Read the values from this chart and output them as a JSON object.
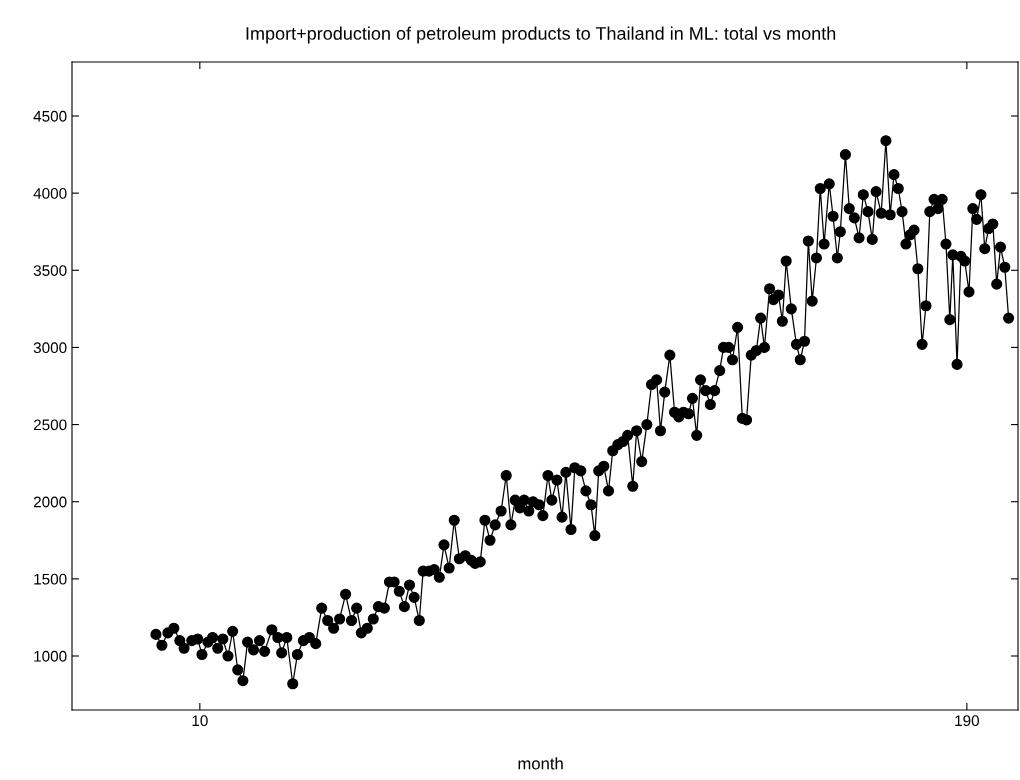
{
  "chart_data": {
    "type": "line",
    "title": "Import+production of petroleum products to Thailand in ML: total vs month",
    "xlabel": "month",
    "x": [
      -0.3,
      1.1,
      2.5,
      3.9,
      5.3,
      6.3,
      8.1,
      9.5,
      10.5,
      11.9,
      13.0,
      14.2,
      15.4,
      16.6,
      17.7,
      18.9,
      20.1,
      21.2,
      22.6,
      24.0,
      25.2,
      26.9,
      28.3,
      29.2,
      30.4,
      31.8,
      32.9,
      34.3,
      35.7,
      37.2,
      38.6,
      40.0,
      41.4,
      42.8,
      44.2,
      45.6,
      46.8,
      47.9,
      49.3,
      50.7,
      51.9,
      53.3,
      54.5,
      55.6,
      56.8,
      58.0,
      59.2,
      60.3,
      61.5,
      62.4,
      63.8,
      65.0,
      66.2,
      67.3,
      68.5,
      69.7,
      70.9,
      72.3,
      73.7,
      74.6,
      75.8,
      76.9,
      78.1,
      79.3,
      80.7,
      81.9,
      83.0,
      84.0,
      85.1,
      86.1,
      87.2,
      88.2,
      89.6,
      90.5,
      91.7,
      92.6,
      93.8,
      95.0,
      95.9,
      97.1,
      98.0,
      99.4,
      100.6,
      101.8,
      102.7,
      103.6,
      104.8,
      105.9,
      106.9,
      108.1,
      109.3,
      110.4,
      111.6,
      112.5,
      113.7,
      114.9,
      116.0,
      117.2,
      118.1,
      119.1,
      120.3,
      121.4,
      122.4,
      123.5,
      124.7,
      125.6,
      126.6,
      127.5,
      128.7,
      129.8,
      130.8,
      132.0,
      132.9,
      134.1,
      135.0,
      136.2,
      137.3,
      138.3,
      139.4,
      140.6,
      141.6,
      142.5,
      143.7,
      144.6,
      145.8,
      146.7,
      147.6,
      148.8,
      150.0,
      150.9,
      151.9,
      152.8,
      153.7,
      154.7,
      155.6,
      156.5,
      157.7,
      158.6,
      159.6,
      160.3,
      161.5,
      162.4,
      163.6,
      164.7,
      165.7,
      166.8,
      167.8,
      168.7,
      169.9,
      171.0,
      172.0,
      172.9,
      173.9,
      174.8,
      175.7,
      176.7,
      177.6,
      178.5,
      179.5,
      180.4,
      181.3,
      182.3,
      183.2,
      184.2,
      185.1,
      186.0,
      186.7,
      187.7,
      188.6,
      189.5,
      190.5,
      191.4,
      192.3,
      193.3,
      194.2,
      195.1,
      196.1,
      197.0,
      197.9,
      198.9,
      199.8
    ],
    "series": [
      {
        "color": "#000000",
        "values": [
          1140,
          1070,
          1150,
          1180,
          1100,
          1050,
          1100,
          1110,
          1010,
          1090,
          1120,
          1050,
          1110,
          1000,
          1160,
          910,
          840,
          1090,
          1040,
          1100,
          1030,
          1170,
          1120,
          1020,
          1120,
          820,
          1010,
          1100,
          1120,
          1080,
          1310,
          1230,
          1180,
          1240,
          1400,
          1230,
          1310,
          1150,
          1180,
          1240,
          1320,
          1310,
          1480,
          1480,
          1420,
          1320,
          1460,
          1380,
          1230,
          1550,
          1550,
          1560,
          1510,
          1720,
          1570,
          1880,
          1630,
          1650,
          1620,
          1600,
          1610,
          1880,
          1750,
          1850,
          1940,
          2170,
          1850,
          2010,
          1960,
          2010,
          1940,
          2000,
          1980,
          1910,
          2170,
          2010,
          2140,
          1900,
          2190,
          1820,
          2220,
          2200,
          2070,
          1980,
          1780,
          2200,
          2230,
          2070,
          2330,
          2370,
          2390,
          2430,
          2100,
          2460,
          2260,
          2500,
          2760,
          2790,
          2460,
          2710,
          2950,
          2580,
          2550,
          2580,
          2570,
          2670,
          2430,
          2790,
          2720,
          2630,
          2720,
          2850,
          3000,
          3000,
          2920,
          3130,
          2540,
          2530,
          2950,
          2980,
          3190,
          3000,
          3380,
          3310,
          3340,
          3170,
          3560,
          3250,
          3020,
          2920,
          3040,
          3690,
          3300,
          3580,
          4030,
          3670,
          4060,
          3850,
          3580,
          3750,
          4250,
          3900,
          3840,
          3710,
          3990,
          3880,
          3700,
          4010,
          3870,
          4340,
          3860,
          4120,
          4030,
          3880,
          3670,
          3730,
          3760,
          3510,
          3020,
          3270,
          3880,
          3960,
          3900,
          3960,
          3670,
          3180,
          3600,
          2890,
          3590,
          3560,
          3360,
          3900,
          3830,
          3990,
          3640,
          3770,
          3800,
          3410,
          3650,
          3520,
          3190
        ]
      }
    ],
    "xlim": [
      -20,
      202
    ],
    "xticks": [
      10,
      190
    ],
    "ylim": [
      650,
      4850
    ],
    "yticks": [
      1000,
      1500,
      2000,
      2500,
      3000,
      3500,
      4000,
      4500
    ],
    "marker": "circle",
    "line_style": "solid",
    "grid": false
  }
}
